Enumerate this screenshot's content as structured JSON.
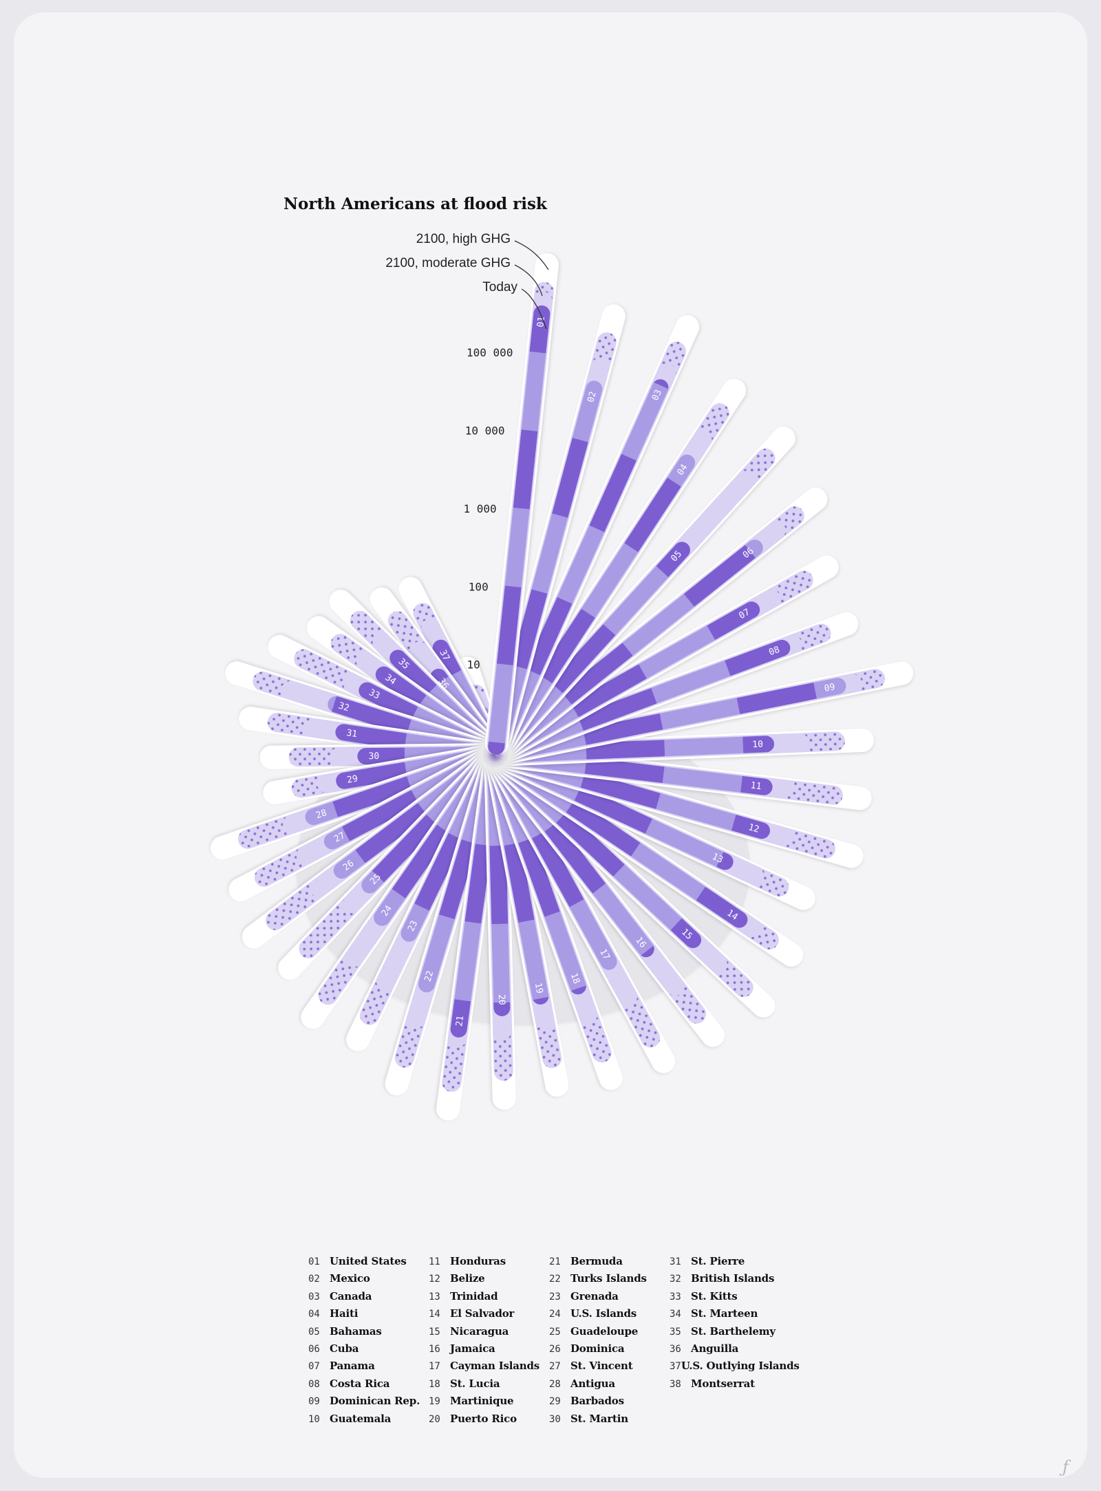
{
  "chart_data": {
    "type": "bar",
    "title": "North Americans at flood risk",
    "series_labels": {
      "high": "2100, high GHG",
      "moderate": "2100, moderate GHG",
      "today": "Today"
    },
    "scale": "log",
    "yticks": [
      {
        "value": 10,
        "label": "10"
      },
      {
        "value": 100,
        "label": "100"
      },
      {
        "value": 1000,
        "label": "1 000"
      },
      {
        "value": 10000,
        "label": "10 000"
      },
      {
        "value": 100000,
        "label": "100 000"
      }
    ],
    "colors": {
      "band_dark": "#7c5ed1",
      "band_light": "#a99be4",
      "pale": "#d9d2f3",
      "dots": "#8a6fd6",
      "white": "#ffffff",
      "background": "#f4f3f6"
    },
    "countries": [
      {
        "id": "01",
        "name": "United States",
        "today": 400000,
        "moderate": 600000,
        "high": 800000
      },
      {
        "id": "02",
        "name": "Mexico",
        "today": 60000,
        "moderate": 120000,
        "high": 260000
      },
      {
        "id": "03",
        "name": "Canada",
        "today": 120000,
        "moderate": 200000,
        "high": 400000
      },
      {
        "id": "04",
        "name": "Haiti",
        "today": 25000,
        "moderate": 60000,
        "high": 150000
      },
      {
        "id": "05",
        "name": "Bahamas",
        "today": 3000,
        "moderate": 50000,
        "high": 120000
      },
      {
        "id": "06",
        "name": "Cuba",
        "today": 15000,
        "moderate": 35000,
        "high": 70000
      },
      {
        "id": "07",
        "name": "Panama",
        "today": 5000,
        "moderate": 10000,
        "high": 30000
      },
      {
        "id": "08",
        "name": "Costa Rica",
        "today": 7000,
        "moderate": 10000,
        "high": 25000
      },
      {
        "id": "09",
        "name": "Dominican Rep.",
        "today": 25000,
        "moderate": 40000,
        "high": 80000
      },
      {
        "id": "10",
        "name": "Guatemala",
        "today": 2500,
        "moderate": 7000,
        "high": 20000
      },
      {
        "id": "11",
        "name": "Honduras",
        "today": 2500,
        "moderate": 4500,
        "high": 20000
      },
      {
        "id": "12",
        "name": "Belize",
        "today": 3000,
        "moderate": 6000,
        "high": 22000
      },
      {
        "id": "13",
        "name": "Trinidad",
        "today": 1500,
        "moderate": 4000,
        "high": 9000
      },
      {
        "id": "14",
        "name": "El Salvador",
        "today": 5000,
        "moderate": 8000,
        "high": 15000
      },
      {
        "id": "15",
        "name": "Nicaragua",
        "today": 2500,
        "moderate": 7000,
        "high": 20000
      },
      {
        "id": "16",
        "name": "Jamaica",
        "today": 1200,
        "moderate": 5000,
        "high": 14000
      },
      {
        "id": "17",
        "name": "Cayman Islands",
        "today": 900,
        "moderate": 3000,
        "high": 12000
      },
      {
        "id": "18",
        "name": "St. Lucia",
        "today": 1200,
        "moderate": 3000,
        "high": 10000
      },
      {
        "id": "19",
        "name": "Martinique",
        "today": 1200,
        "moderate": 2500,
        "high": 8000
      },
      {
        "id": "20",
        "name": "Puerto Rico",
        "today": 1500,
        "moderate": 3000,
        "high": 10000
      },
      {
        "id": "21",
        "name": "Bermuda",
        "today": 3000,
        "moderate": 4000,
        "high": 15000
      },
      {
        "id": "22",
        "name": "Turks Islands",
        "today": 1000,
        "moderate": 3000,
        "high": 10000
      },
      {
        "id": "23",
        "name": "Grenada",
        "today": 300,
        "moderate": 1500,
        "high": 4500
      },
      {
        "id": "24",
        "name": "U.S. Islands",
        "today": 300,
        "moderate": 1300,
        "high": 5000
      },
      {
        "id": "25",
        "name": "Guadeloupe",
        "today": 180,
        "moderate": 400,
        "high": 2500
      },
      {
        "id": "26",
        "name": "Dominica",
        "today": 250,
        "moderate": 600,
        "high": 3000
      },
      {
        "id": "27",
        "name": "St. Vincent",
        "today": 200,
        "moderate": 500,
        "high": 2000
      },
      {
        "id": "28",
        "name": "Antigua",
        "today": 250,
        "moderate": 500,
        "high": 2000
      },
      {
        "id": "29",
        "name": "Barbados",
        "today": 80,
        "moderate": 140,
        "high": 300
      },
      {
        "id": "30",
        "name": "St. Martin",
        "today": 40,
        "moderate": 90,
        "high": 300
      },
      {
        "id": "31",
        "name": "St. Pierre",
        "today": 80,
        "moderate": 200,
        "high": 600
      },
      {
        "id": "32",
        "name": "British Islands",
        "today": 120,
        "moderate": 500,
        "high": 1200
      },
      {
        "id": "33",
        "name": "St. Kitts",
        "today": 60,
        "moderate": 100,
        "high": 500
      },
      {
        "id": "34",
        "name": "St. Marteen",
        "today": 50,
        "moderate": 100,
        "high": 250
      },
      {
        "id": "35",
        "name": "St. Barthelemy",
        "today": 50,
        "moderate": 100,
        "high": 250
      },
      {
        "id": "36",
        "name": "Anguilla",
        "today": 15,
        "moderate": 40,
        "high": 120
      },
      {
        "id": "37",
        "name": "U.S. Outlying Islands",
        "today": 30,
        "moderate": 60,
        "high": 100
      },
      {
        "id": "38",
        "name": "Montserrat",
        "today": 3,
        "moderate": 5,
        "high": 6
      }
    ]
  }
}
